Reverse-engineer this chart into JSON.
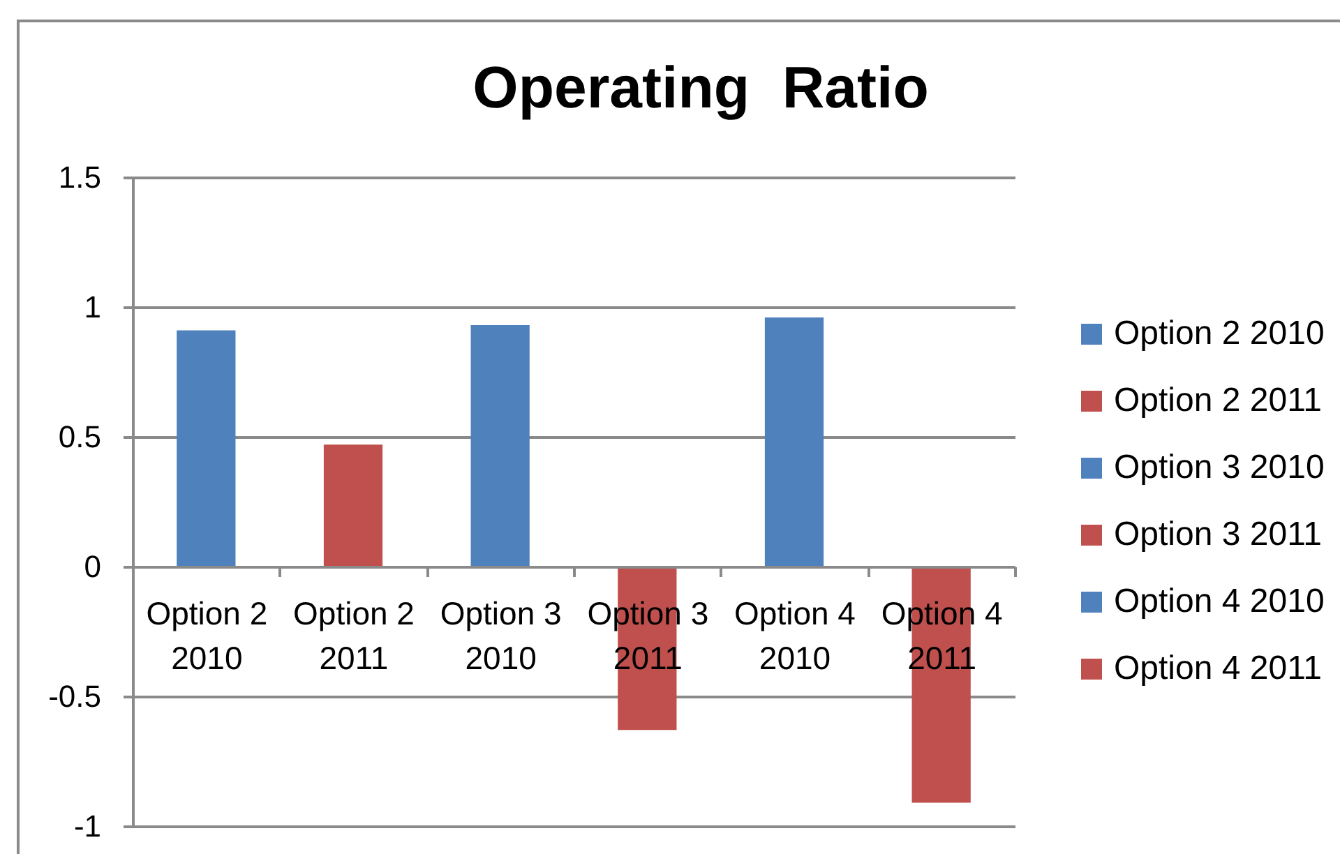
{
  "chart_data": {
    "type": "bar",
    "title": "Operating  Ratio",
    "categories": [
      "Option 2 2010",
      "Option 2 2011",
      "Option 3 2010",
      "Option 3 2011",
      "Option 4 2010",
      "Option 4 2011"
    ],
    "series": [
      {
        "name": "Option 2 2010",
        "color": "#4f81bd",
        "values": [
          0.91,
          null,
          null,
          null,
          null,
          null
        ]
      },
      {
        "name": "Option 2 2011",
        "color": "#c0504d",
        "values": [
          null,
          0.47,
          null,
          null,
          null,
          null
        ]
      },
      {
        "name": "Option 3 2010",
        "color": "#4f81bd",
        "values": [
          null,
          null,
          0.93,
          null,
          null,
          null
        ]
      },
      {
        "name": "Option 3 2011",
        "color": "#c0504d",
        "values": [
          null,
          null,
          null,
          -0.63,
          null,
          null
        ]
      },
      {
        "name": "Option 4 2010",
        "color": "#4f81bd",
        "values": [
          null,
          null,
          null,
          null,
          0.96,
          null
        ]
      },
      {
        "name": "Option 4 2011",
        "color": "#c0504d",
        "values": [
          null,
          null,
          null,
          null,
          null,
          -0.91
        ]
      }
    ],
    "ylim": [
      -1,
      1.5
    ],
    "yticks": [
      -1,
      -0.5,
      0,
      0.5,
      1,
      1.5
    ],
    "grid": "y",
    "legend": "right"
  }
}
